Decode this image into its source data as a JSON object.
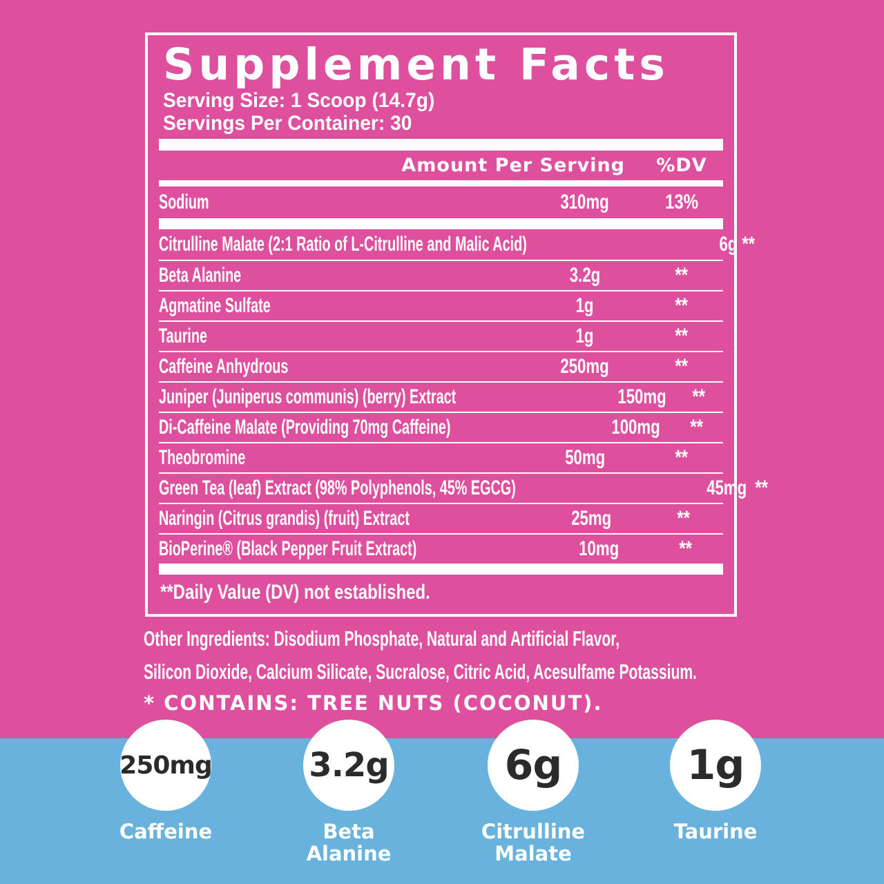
{
  "colors": {
    "pink": "#de509d",
    "blue": "#67b3dd",
    "circle_text": "#2b2b2b",
    "text": "#ffffff"
  },
  "panel": {
    "title": "Supplement Facts",
    "serving_size": "Serving Size: 1 Scoop (14.7g)",
    "servings_per_container": "Servings Per Container: 30",
    "columns": {
      "amount": "Amount Per Serving",
      "dv": "%DV"
    },
    "rows": [
      {
        "name": "Sodium",
        "amount": "310mg",
        "dv": "13%"
      },
      {
        "name": "Citrulline Malate (2:1 Ratio of L-Citrulline and Malic Acid)",
        "amount": "6g",
        "dv": "**"
      },
      {
        "name": "Beta Alanine",
        "amount": "3.2g",
        "dv": "**"
      },
      {
        "name": "Agmatine Sulfate",
        "amount": "1g",
        "dv": "**"
      },
      {
        "name": "Taurine",
        "amount": "1g",
        "dv": "**"
      },
      {
        "name": "Caffeine Anhydrous",
        "amount": "250mg",
        "dv": "**"
      },
      {
        "name": "Juniper (Juniperus communis) (berry) Extract",
        "amount": "150mg",
        "dv": "**"
      },
      {
        "name": "Di-Caffeine Malate (Providing 70mg Caffeine)",
        "amount": "100mg",
        "dv": "**"
      },
      {
        "name": "Theobromine",
        "amount": "50mg",
        "dv": "**"
      },
      {
        "name": "Green Tea (leaf) Extract (98% Polyphenols, 45% EGCG)",
        "amount": "45mg",
        "dv": "**"
      },
      {
        "name": "Naringin (Citrus grandis) (fruit) Extract",
        "amount": "25mg",
        "dv": "**"
      },
      {
        "name": "BioPerine® (Black Pepper Fruit Extract)",
        "amount": "10mg",
        "dv": "**"
      }
    ],
    "footnote": "**Daily Value (DV) not established."
  },
  "other_ingredients": {
    "line1": "Other Ingredients: Disodium Phosphate, Natural and Artificial Flavor,",
    "line2": "Silicon Dioxide, Calcium Silicate, Sucralose, Citric Acid, Acesulfame Potassium.",
    "contains": "* CONTAINS: TREE NUTS (COCONUT)."
  },
  "highlights": [
    {
      "value": "250mg",
      "label": "Caffeine"
    },
    {
      "value": "3.2g",
      "label": "Beta\nAlanine"
    },
    {
      "value": "6g",
      "label": "Citrulline\nMalate"
    },
    {
      "value": "1g",
      "label": "Taurine"
    }
  ]
}
